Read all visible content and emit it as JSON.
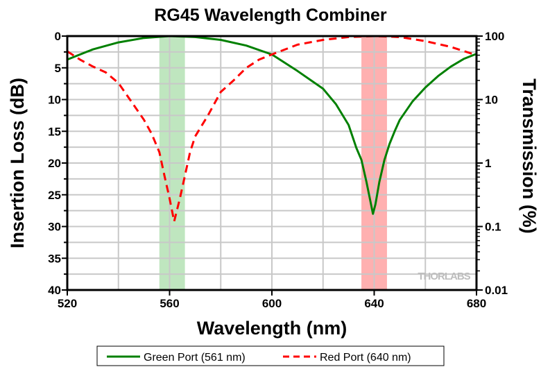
{
  "chart_data": {
    "type": "line",
    "title": "RG45 Wavelength Combiner",
    "xlabel": "Wavelength (nm)",
    "ylabel": "Insertion Loss (dB)",
    "y2label": "Transmission (%)",
    "xlim": [
      520,
      680
    ],
    "ylim": [
      0,
      40
    ],
    "y_inverted": true,
    "y2_scale": "log",
    "y2lim": [
      100,
      0.01
    ],
    "grid": true,
    "xticks": [
      "520",
      "560",
      "600",
      "640",
      "680"
    ],
    "yticks": [
      "0",
      "5",
      "10",
      "15",
      "20",
      "25",
      "30",
      "35",
      "40"
    ],
    "y2ticks": [
      "100",
      "10",
      "1",
      "0.1",
      "0.01"
    ],
    "watermark": "THORLABS",
    "bands": [
      {
        "name": "green-band",
        "range": [
          556,
          566
        ],
        "color": "#bfe6bf"
      },
      {
        "name": "red-band",
        "range": [
          635,
          645
        ],
        "color": "#ffb0b0"
      }
    ],
    "series": [
      {
        "name": "Green Port (561 nm)",
        "color": "#008000",
        "dash": false,
        "x": [
          520,
          530,
          540,
          550,
          560,
          570,
          580,
          590,
          600,
          610,
          620,
          625,
          630,
          633,
          635,
          637,
          638.5,
          639.5,
          640.5,
          642,
          644,
          646,
          648,
          650,
          655,
          660,
          665,
          670,
          675,
          680
        ],
        "y": [
          3.7,
          2.1,
          1.0,
          0.3,
          0.0,
          0.15,
          0.6,
          1.5,
          2.9,
          5.5,
          8.3,
          10.7,
          14,
          17.6,
          19.5,
          23,
          26,
          28,
          26.5,
          23,
          19.5,
          17,
          15,
          13.2,
          10.3,
          8.1,
          6.3,
          4.8,
          3.6,
          2.8
        ]
      },
      {
        "name": "Red Port (640 nm)",
        "color": "#ff0000",
        "dash": true,
        "x": [
          520,
          525,
          530,
          535,
          540,
          545,
          550,
          553,
          556,
          558,
          560,
          561.8,
          564,
          566,
          568,
          570,
          575,
          580,
          585,
          590,
          595,
          600,
          610,
          620,
          630,
          640,
          650,
          660,
          670,
          680
        ],
        "y": [
          2.4,
          3.7,
          4.8,
          5.7,
          7.4,
          10.3,
          13.2,
          15.4,
          18.3,
          22,
          25.6,
          29.2,
          25.6,
          22,
          18.3,
          15.8,
          12.5,
          8.8,
          7,
          5,
          3.7,
          2.9,
          1.35,
          0.6,
          0.15,
          0,
          0.15,
          0.8,
          1.7,
          3.0
        ]
      }
    ]
  }
}
